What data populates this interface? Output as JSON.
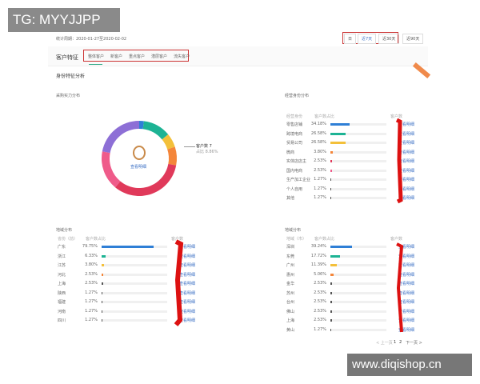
{
  "watermark_top": "TG: MYYJJPP",
  "watermark_bottom": "www.diqishop.cn",
  "period": "统计周期：2020-01-27至2020-02-02",
  "range_buttons": [
    "日",
    "近7天",
    "近30天",
    "近90天"
  ],
  "page_title": "客户特征",
  "tabs": [
    "整体客户",
    "新客户",
    "重点客户",
    "潜层客户",
    "流失客户"
  ],
  "section_title": "身份特征分析",
  "purchase": {
    "title": "采购实力分布",
    "center_label": "查看明细",
    "legend_title": "客户数 7",
    "legend_sub": "占比 8.86%",
    "chart_data": {
      "type": "pie",
      "values": [
        2,
        12,
        6,
        8,
        33,
        17,
        22
      ],
      "colors": [
        "#2f7fd6",
        "#1db394",
        "#f3c03a",
        "#f4863a",
        "#e0395a",
        "#ef5b8a",
        "#8d6fd6"
      ]
    }
  },
  "identity": {
    "title": "经营身份分布",
    "headers": [
      "经营身份",
      "客户数占比",
      "客户数"
    ],
    "link": "查看明细",
    "rows": [
      {
        "name": "零售店铺",
        "pct": "34.18%",
        "v": 34.18,
        "c": "#2f7fd6"
      },
      {
        "name": "跨境电商",
        "pct": "26.58%",
        "v": 26.58,
        "c": "#1db394"
      },
      {
        "name": "贸易公司",
        "pct": "26.58%",
        "v": 26.58,
        "c": "#f3c03a"
      },
      {
        "name": "微商",
        "pct": "3.80%",
        "v": 3.8,
        "c": "#f4863a"
      },
      {
        "name": "实体店店主",
        "pct": "2.53%",
        "v": 2.53,
        "c": "#e0395a"
      },
      {
        "name": "国内电商",
        "pct": "2.53%",
        "v": 2.53,
        "c": "#ef5b8a"
      },
      {
        "name": "生产加工企业",
        "pct": "1.27%",
        "v": 1.27,
        "c": "#555"
      },
      {
        "name": "个人自用",
        "pct": "1.27%",
        "v": 1.27,
        "c": "#555"
      },
      {
        "name": "其他",
        "pct": "1.27%",
        "v": 1.27,
        "c": "#555"
      }
    ]
  },
  "region_province": {
    "title": "地域分布",
    "headers": [
      "省份（前）",
      "客户数占比",
      "客户数"
    ],
    "link": "查看明细",
    "rows": [
      {
        "name": "广东",
        "pct": "79.75%",
        "v": 79.75,
        "c": "#2f7fd6"
      },
      {
        "name": "浙江",
        "pct": "6.33%",
        "v": 6.33,
        "c": "#1db394"
      },
      {
        "name": "江苏",
        "pct": "3.80%",
        "v": 3.8,
        "c": "#f3c03a"
      },
      {
        "name": "河北",
        "pct": "2.53%",
        "v": 2.53,
        "c": "#f4863a"
      },
      {
        "name": "上海",
        "pct": "2.53%",
        "v": 2.53,
        "c": "#555"
      },
      {
        "name": "陕西",
        "pct": "1.27%",
        "v": 1.27,
        "c": "#555"
      },
      {
        "name": "福建",
        "pct": "1.27%",
        "v": 1.27,
        "c": "#555"
      },
      {
        "name": "河南",
        "pct": "1.27%",
        "v": 1.27,
        "c": "#555"
      },
      {
        "name": "四川",
        "pct": "1.27%",
        "v": 1.27,
        "c": "#555"
      }
    ]
  },
  "region_city": {
    "title": "地域分布",
    "headers": [
      "地域（市）",
      "客户数占比",
      "客户数"
    ],
    "link": "查看明细",
    "rows": [
      {
        "name": "深圳",
        "pct": "39.24%",
        "v": 39.24,
        "c": "#2f7fd6"
      },
      {
        "name": "东莞",
        "pct": "17.72%",
        "v": 17.72,
        "c": "#1db394"
      },
      {
        "name": "广州",
        "pct": "11.39%",
        "v": 11.39,
        "c": "#f3c03a"
      },
      {
        "name": "惠州",
        "pct": "5.06%",
        "v": 5.06,
        "c": "#f4863a"
      },
      {
        "name": "金华",
        "pct": "2.53%",
        "v": 2.53,
        "c": "#555"
      },
      {
        "name": "苏州",
        "pct": "2.53%",
        "v": 2.53,
        "c": "#555"
      },
      {
        "name": "台州",
        "pct": "2.53%",
        "v": 2.53,
        "c": "#555"
      },
      {
        "name": "佛山",
        "pct": "2.53%",
        "v": 2.53,
        "c": "#555"
      },
      {
        "name": "上海",
        "pct": "2.53%",
        "v": 2.53,
        "c": "#555"
      },
      {
        "name": "黄山",
        "pct": "1.27%",
        "v": 1.27,
        "c": "#555"
      }
    ]
  },
  "pagination": {
    "prev": "< 上一页",
    "pages": [
      "1",
      "2"
    ],
    "next": "下一页 >"
  }
}
